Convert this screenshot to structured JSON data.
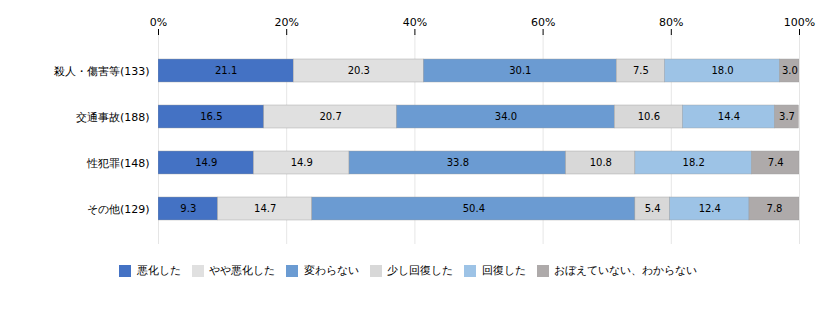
{
  "chart_data": {
    "type": "bar",
    "orientation": "horizontal",
    "stacked": true,
    "categories": [
      "殺人・傷害等(133)",
      "交通事故(188)",
      "性犯罪(148)",
      "その他(129)"
    ],
    "series": [
      {
        "name": "悪化した",
        "color": "#4472C4",
        "values": [
          21.1,
          16.5,
          14.9,
          9.3
        ],
        "value_labels": [
          "21.1",
          "16.5",
          "14.9",
          "9.3"
        ]
      },
      {
        "name": "やや悪化した",
        "color": "#E0E0E0",
        "values": [
          20.3,
          20.7,
          14.9,
          14.7
        ],
        "value_labels": [
          "20.3",
          "20.7",
          "14.9",
          "14.7"
        ]
      },
      {
        "name": "変わらない",
        "color": "#6B9BD2",
        "values": [
          30.1,
          34.0,
          33.8,
          50.4
        ],
        "value_labels": [
          "30.1",
          "34.0",
          "33.8",
          "50.4"
        ]
      },
      {
        "name": "少し回復した",
        "color": "#D8D8D8",
        "values": [
          7.5,
          10.6,
          10.8,
          5.4
        ],
        "value_labels": [
          "7.5",
          "10.6",
          "10.8",
          "5.4"
        ]
      },
      {
        "name": "回復した",
        "color": "#9DC3E6",
        "values": [
          18.0,
          14.4,
          18.2,
          12.4
        ],
        "value_labels": [
          "18.0",
          "14.4",
          "18.2",
          "12.4"
        ]
      },
      {
        "name": "おぼえていない、わからない",
        "color": "#AEAAAA",
        "values": [
          3.0,
          3.7,
          7.4,
          7.8
        ],
        "value_labels": [
          "3.0",
          "3.7",
          "7.4",
          "7.8"
        ]
      }
    ],
    "xlim": [
      0,
      100
    ],
    "xticks": [
      {
        "value": 0,
        "label": "0%"
      },
      {
        "value": 20,
        "label": "20%"
      },
      {
        "value": 40,
        "label": "40%"
      },
      {
        "value": 60,
        "label": "60%"
      },
      {
        "value": 80,
        "label": "80%"
      },
      {
        "value": 100,
        "label": "100%"
      }
    ],
    "grid": true,
    "data_labels": true,
    "legend": "bottom"
  }
}
